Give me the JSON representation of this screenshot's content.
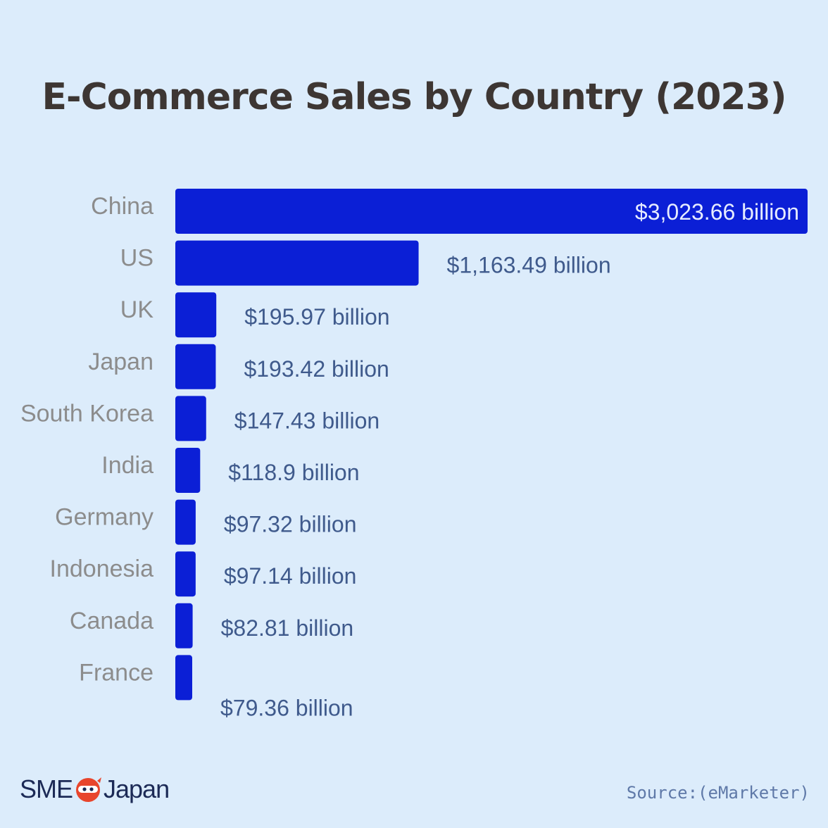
{
  "chart_data": {
    "type": "bar",
    "orientation": "horizontal",
    "title": "E-Commerce Sales by Country (2023)",
    "categories": [
      "China",
      "US",
      "UK",
      "Japan",
      "South Korea",
      "India",
      "Germany",
      "Indonesia",
      "Canada",
      "France"
    ],
    "values": [
      3023.66,
      1163.49,
      195.97,
      193.42,
      147.43,
      118.9,
      97.32,
      97.14,
      82.81,
      79.36
    ],
    "value_labels": [
      "$3,023.66 billion",
      "$1,163.49 billion",
      "$195.97 billion",
      "$193.42 billion",
      "$147.43 billion",
      "$118.9 billion",
      "$97.32 billion",
      "$97.14 billion",
      "$82.81 billion",
      "$79.36 billion"
    ],
    "unit": "billion USD",
    "bar_color": "#0b1fd6",
    "grid": false,
    "legend": "none"
  },
  "brand": {
    "logo_text_left": "SME",
    "logo_text_right": "Japan"
  },
  "source_text": "Source:(eMarketer)"
}
